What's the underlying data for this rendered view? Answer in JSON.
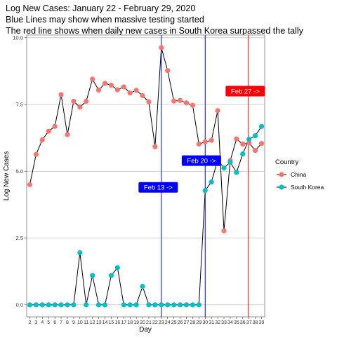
{
  "chart_data": {
    "type": "line",
    "title_lines": [
      "Log New Cases: January 22 - February 29, 2020",
      "Blue Lines may show when massive testing started",
      "The red line shows when daily new cases in South Korea surpassed the tally"
    ],
    "xlabel": "Day",
    "ylabel": "Log New Cases",
    "x_ticks": [
      2,
      3,
      4,
      5,
      6,
      7,
      8,
      9,
      10,
      11,
      12,
      13,
      14,
      15,
      16,
      17,
      18,
      19,
      20,
      21,
      22,
      23,
      24,
      25,
      26,
      27,
      28,
      29,
      30,
      31,
      32,
      33,
      34,
      35,
      36,
      37,
      38,
      39
    ],
    "xlim": [
      1.5,
      39.5
    ],
    "ylim": [
      -0.45,
      10.1
    ],
    "y_ticks": [
      0.0,
      2.5,
      5.0,
      7.5,
      10.0
    ],
    "y_tick_labels": [
      "0.0",
      "2.5",
      "5.0",
      "7.5",
      "10.0"
    ],
    "grid": true,
    "legend": {
      "title": "Country",
      "placement": "right",
      "entries": [
        {
          "name": "China",
          "color": "#F8766D"
        },
        {
          "name": "South Korea",
          "color": "#00BFC4"
        }
      ]
    },
    "line_color": "#000000",
    "series": [
      {
        "name": "China",
        "color": "#F8766D",
        "x": [
          2,
          3,
          4,
          5,
          6,
          7,
          8,
          9,
          10,
          11,
          12,
          13,
          14,
          15,
          16,
          17,
          18,
          19,
          20,
          21,
          22,
          23,
          24,
          25,
          26,
          27,
          28,
          29,
          30,
          31,
          32,
          33,
          34,
          35,
          36,
          37,
          38,
          39
        ],
        "values": [
          4.5,
          5.63,
          6.18,
          6.5,
          6.68,
          7.87,
          6.37,
          7.62,
          7.4,
          7.62,
          8.45,
          8.04,
          8.29,
          8.22,
          8.05,
          8.16,
          7.93,
          8.03,
          7.83,
          7.6,
          5.92,
          9.63,
          8.77,
          7.63,
          7.65,
          7.56,
          7.47,
          6.02,
          6.1,
          6.16,
          7.27,
          2.77,
          5.4,
          6.21,
          6.02,
          6.06,
          5.78,
          6.04
        ]
      },
      {
        "name": "South Korea",
        "color": "#00BFC4",
        "x": [
          2,
          3,
          4,
          5,
          6,
          7,
          8,
          9,
          10,
          11,
          12,
          13,
          14,
          15,
          16,
          17,
          18,
          19,
          20,
          21,
          22,
          23,
          24,
          25,
          26,
          27,
          28,
          29,
          30,
          31,
          32,
          33,
          34,
          35,
          36,
          37,
          38,
          39
        ],
        "values": [
          0,
          0,
          0,
          0,
          0,
          0,
          0,
          0,
          1.95,
          0,
          1.1,
          0,
          0,
          1.1,
          1.39,
          0,
          0,
          0,
          0.69,
          0,
          0,
          0,
          0,
          0,
          0,
          0,
          0,
          0,
          4.28,
          4.6,
          5.42,
          5.12,
          5.34,
          4.96,
          5.65,
          6.2,
          6.33,
          6.68
        ]
      }
    ],
    "vertical_lines": [
      {
        "x": 23,
        "color": "#0000FF"
      },
      {
        "x": 30,
        "color": "#0000FF"
      },
      {
        "x": 36.9,
        "color": "#FF0000"
      }
    ],
    "annotations": [
      {
        "text": "Feb 13 ->",
        "x": 22.5,
        "y": 4.4,
        "fill": "#0000FF"
      },
      {
        "text": "Feb 20 ->",
        "x": 29.4,
        "y": 5.4,
        "fill": "#0000FF"
      },
      {
        "text": "Feb 27 ->",
        "x": 36.4,
        "y": 8.0,
        "fill": "#FF0000"
      }
    ]
  }
}
